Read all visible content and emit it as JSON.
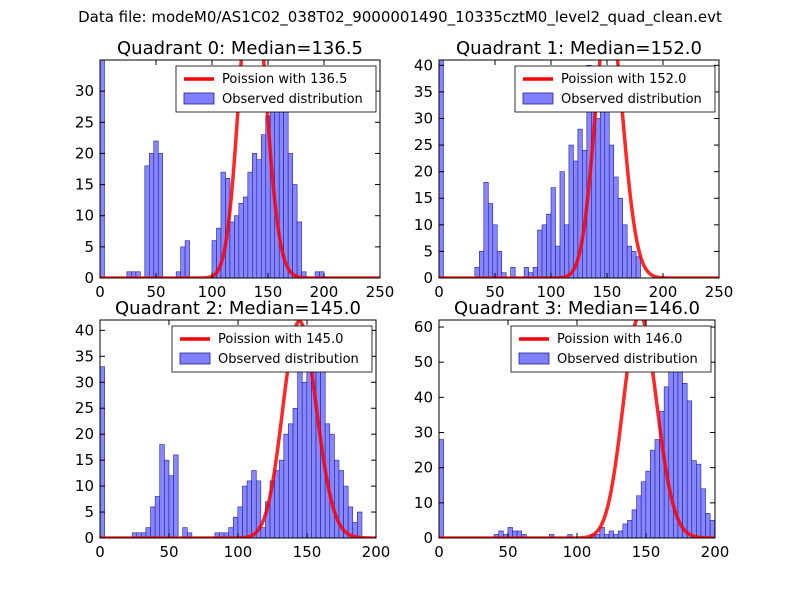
{
  "figure": {
    "suptitle": "Data file: modeM0/AS1C02_038T02_9000001490_10335cztM0_level2_quad_clean.evt"
  },
  "colors": {
    "bars": "#8080ff",
    "bar_edge": "#20209a",
    "curve": "#ff0000",
    "axis": "#000000"
  },
  "chart_data": [
    {
      "type": "bar",
      "title": "Quadrant 0: Median=136.5",
      "xlabel": "",
      "ylabel": "",
      "xlim": [
        0,
        250
      ],
      "ylim": [
        0,
        35
      ],
      "xticks": [
        0,
        50,
        100,
        150,
        200,
        250
      ],
      "yticks": [
        0,
        5,
        10,
        15,
        20,
        25,
        30
      ],
      "legend": {
        "position": "top-right",
        "entries": [
          "Poission with 136.5",
          "Observed distribution"
        ]
      },
      "bin_start": 0,
      "bin_width": 4,
      "values": [
        35,
        0,
        0,
        0,
        0,
        0,
        1,
        1,
        1,
        0,
        18,
        20,
        22,
        20,
        0,
        0,
        0,
        1,
        5,
        6,
        0,
        0,
        0,
        0,
        0,
        6,
        8,
        17,
        16,
        9,
        10,
        12,
        13,
        17,
        20,
        19,
        23,
        26,
        28,
        34,
        29,
        27,
        20,
        15,
        9,
        1,
        0,
        0,
        1,
        1,
        0,
        0,
        0,
        0,
        0,
        0,
        0,
        0,
        0,
        0,
        0,
        0,
        0
      ],
      "poisson_mean": 136.5,
      "poisson_scale": 1475
    },
    {
      "type": "bar",
      "title": "Quadrant 1: Median=152.0",
      "xlabel": "",
      "ylabel": "",
      "xlim": [
        0,
        250
      ],
      "ylim": [
        0,
        41
      ],
      "xticks": [
        0,
        50,
        100,
        150,
        200,
        250
      ],
      "yticks": [
        0,
        5,
        10,
        15,
        20,
        25,
        30,
        35,
        40
      ],
      "legend": {
        "position": "top-right",
        "entries": [
          "Poission with 152.0",
          "Observed distribution"
        ]
      },
      "bin_start": 0,
      "bin_width": 4,
      "values": [
        41,
        0,
        0,
        0,
        0,
        0,
        0,
        0,
        2,
        5,
        18,
        14,
        10,
        5,
        1,
        0,
        2,
        0,
        0,
        2,
        1,
        2,
        9,
        10,
        12,
        17,
        6,
        20,
        10,
        25,
        22,
        28,
        24,
        40,
        32,
        30,
        34,
        39,
        25,
        19,
        15,
        10,
        6,
        5,
        4,
        0,
        0,
        0,
        0,
        0,
        0,
        0,
        0,
        0,
        0,
        0,
        0,
        0,
        0,
        0,
        0,
        0,
        0
      ],
      "poisson_mean": 152.0,
      "poisson_scale": 1550
    },
    {
      "type": "bar",
      "title": "Quadrant 2: Median=145.0",
      "xlabel": "",
      "ylabel": "",
      "xlim": [
        0,
        200
      ],
      "ylim": [
        0,
        42
      ],
      "xticks": [
        0,
        50,
        100,
        150,
        200
      ],
      "yticks": [
        0,
        5,
        10,
        15,
        20,
        25,
        30,
        35,
        40
      ],
      "legend": {
        "position": "top-right",
        "entries": [
          "Poission with 145.0",
          "Observed distribution"
        ]
      },
      "bin_start": 0,
      "bin_width": 3.33,
      "values": [
        33,
        0,
        0,
        0,
        0,
        0,
        0,
        1,
        1,
        1,
        2,
        6,
        8,
        18,
        15,
        12,
        16,
        0,
        2,
        1,
        0,
        0,
        0,
        0,
        0,
        1,
        1,
        1,
        2,
        4,
        6,
        10,
        11,
        13,
        11,
        2,
        7,
        11,
        13,
        15,
        20,
        22,
        25,
        32,
        30,
        40,
        40,
        33,
        36,
        22,
        20,
        15,
        13,
        10,
        6,
        3,
        5,
        0,
        0,
        0,
        0
      ],
      "poisson_mean": 145.0,
      "poisson_scale": 1260
    },
    {
      "type": "bar",
      "title": "Quadrant 3: Median=146.0",
      "xlabel": "",
      "ylabel": "",
      "xlim": [
        0,
        200
      ],
      "ylim": [
        0,
        62
      ],
      "xticks": [
        0,
        50,
        100,
        150,
        200
      ],
      "yticks": [
        0,
        10,
        20,
        30,
        40,
        50,
        60
      ],
      "legend": {
        "position": "top-right",
        "entries": [
          "Poission with 146.0",
          "Observed distribution"
        ]
      },
      "bin_start": 0,
      "bin_width": 3.33,
      "values": [
        28,
        0,
        0,
        0,
        0,
        0,
        0,
        0,
        0,
        0,
        0,
        0,
        1,
        2,
        1,
        3,
        2,
        2,
        1,
        0,
        0,
        0,
        0,
        0,
        1,
        0,
        0,
        0,
        1,
        0,
        0,
        0,
        0,
        1,
        1,
        3,
        1,
        2,
        1,
        2,
        4,
        5,
        8,
        12,
        16,
        19,
        25,
        28,
        36,
        43,
        55,
        58,
        50,
        44,
        39,
        22,
        21,
        14,
        7,
        5,
        3
      ],
      "poisson_mean": 146.0,
      "poisson_scale": 1920
    }
  ]
}
